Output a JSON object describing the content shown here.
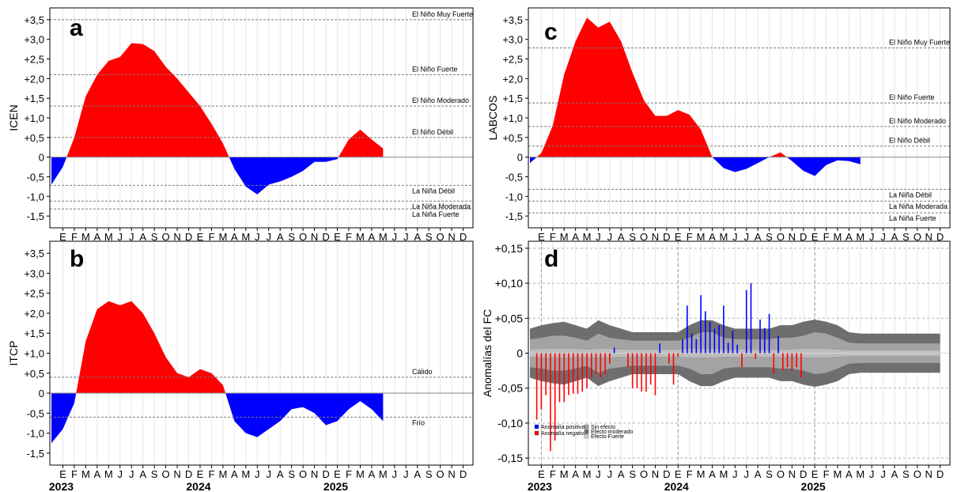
{
  "colors": {
    "positive": "#ff0000",
    "negative": "#0000ff",
    "band_dark": "#6e6e6e",
    "band_mid": "#a3a3a3",
    "band_light": "#d0d0d0",
    "dashed": "#7a7a7a",
    "zero_line": "#8a8a8a"
  },
  "x_axis": {
    "month_labels": [
      "E",
      "F",
      "M",
      "A",
      "M",
      "J",
      "J",
      "A",
      "S",
      "O",
      "N",
      "D",
      "E",
      "F",
      "M",
      "A",
      "M",
      "J",
      "J",
      "A",
      "S",
      "O",
      "N",
      "D",
      "E",
      "F",
      "M",
      "A",
      "M",
      "J",
      "J",
      "A",
      "S",
      "O",
      "N",
      "D"
    ],
    "year_labels": [
      "2023",
      "2024",
      "2025"
    ]
  },
  "chart_data": [
    {
      "type": "area",
      "panel": "a",
      "ylabel": "ICEN",
      "ylim": [
        -1.8,
        3.8
      ],
      "y_ticks": [
        "+3,5",
        "+3,0",
        "+2,5",
        "+2,0",
        "+1,5",
        "+1,0",
        "+0,5",
        "0",
        "-0,5",
        "-1,0",
        "-1,5"
      ],
      "y_tick_values": [
        3.5,
        3.0,
        2.5,
        2.0,
        1.5,
        1.0,
        0.5,
        0,
        -0.5,
        -1.0,
        -1.5
      ],
      "x_start": "2022-12",
      "series": [
        {
          "values": [
            -0.7,
            -0.25,
            0.5,
            1.55,
            2.1,
            2.45,
            2.55,
            2.9,
            2.88,
            2.7,
            2.3,
            2.0,
            1.65,
            1.3,
            0.85,
            0.35,
            -0.3,
            -0.75,
            -0.95,
            -0.7,
            -0.62,
            -0.5,
            -0.35,
            -0.12,
            -0.12,
            -0.05,
            0.45,
            0.7,
            0.45,
            0.22
          ]
        }
      ],
      "thresholds": [
        {
          "label": "El Niño Muy Fuerte",
          "value": 3.5
        },
        {
          "label": "El Niño Fuerte",
          "value": 2.1
        },
        {
          "label": "El Niño Moderado",
          "value": 1.3
        },
        {
          "label": "El Niño Débil",
          "value": 0.5
        },
        {
          "label": "La Niña Débil",
          "value": -0.72
        },
        {
          "label": "La Niña Moderada",
          "value": -1.12
        },
        {
          "label": "La Niña Fuerte",
          "value": -1.32
        }
      ]
    },
    {
      "type": "area",
      "panel": "b",
      "ylabel": "ITCP",
      "ylim": [
        -1.8,
        3.8
      ],
      "y_ticks": [
        "+3,5",
        "+3,0",
        "+2,5",
        "+2,0",
        "+1,5",
        "+1,0",
        "+0,5",
        "0",
        "-0,5",
        "-1,0",
        "-1,5"
      ],
      "y_tick_values": [
        3.5,
        3.0,
        2.5,
        2.0,
        1.5,
        1.0,
        0.5,
        0,
        -0.5,
        -1.0,
        -1.5
      ],
      "x_start": "2022-12",
      "series": [
        {
          "values": [
            -1.25,
            -0.9,
            -0.25,
            1.3,
            2.1,
            2.3,
            2.2,
            2.3,
            2.0,
            1.5,
            0.9,
            0.5,
            0.4,
            0.6,
            0.5,
            0.2,
            -0.7,
            -1.0,
            -1.1,
            -0.9,
            -0.7,
            -0.4,
            -0.35,
            -0.5,
            -0.8,
            -0.7,
            -0.4,
            -0.2,
            -0.4,
            -0.7
          ]
        }
      ],
      "thresholds": [
        {
          "label": "Cálido",
          "value": 0.4
        },
        {
          "label": "Frío",
          "value": -0.6
        }
      ]
    },
    {
      "type": "area",
      "panel": "c",
      "ylabel": "LABCOS",
      "ylim": [
        -1.8,
        3.8
      ],
      "y_ticks": [
        "+3,5",
        "+3,0",
        "+2,5",
        "+2,0",
        "+1,5",
        "+1,0",
        "+0,5",
        "0",
        "-0,5",
        "-1,0",
        "-1,5"
      ],
      "y_tick_values": [
        3.5,
        3.0,
        2.5,
        2.0,
        1.5,
        1.0,
        0.5,
        0,
        -0.5,
        -1.0,
        -1.5
      ],
      "x_start": "2022-12",
      "series": [
        {
          "values": [
            -0.15,
            0.1,
            0.8,
            2.1,
            2.95,
            3.55,
            3.3,
            3.45,
            2.95,
            2.15,
            1.45,
            1.05,
            1.05,
            1.2,
            1.08,
            0.7,
            0.0,
            -0.28,
            -0.38,
            -0.3,
            -0.15,
            0.0,
            0.12,
            -0.1,
            -0.35,
            -0.48,
            -0.2,
            -0.08,
            -0.1,
            -0.18
          ]
        }
      ],
      "thresholds": [
        {
          "label": "El Niño Muy Fuerte",
          "value": 2.78
        },
        {
          "label": "El Niño Fuerte",
          "value": 1.38
        },
        {
          "label": "El Niño Moderado",
          "value": 0.78
        },
        {
          "label": "El Niño Débil",
          "value": 0.28
        },
        {
          "label": "La Niña Débil",
          "value": -0.82
        },
        {
          "label": "La Niña Moderada",
          "value": -1.12
        },
        {
          "label": "La Niña Fuerte",
          "value": -1.42
        }
      ]
    },
    {
      "type": "bar",
      "panel": "d",
      "ylabel": "Anomalías del FC",
      "ylim": [
        -0.16,
        0.16
      ],
      "y_ticks": [
        "+0,15",
        "+0,10",
        "+0,05",
        "0",
        "-0,05",
        "-0,10",
        "-0,15"
      ],
      "y_tick_values": [
        0.15,
        0.1,
        0.05,
        0,
        -0.05,
        -0.1,
        -0.15
      ],
      "x_start": "2022-12",
      "band_monthly": {
        "strong": [
          0.035,
          0.04,
          0.043,
          0.045,
          0.04,
          0.035,
          0.047,
          0.04,
          0.035,
          0.03,
          0.03,
          0.03,
          0.03,
          0.03,
          0.04,
          0.047,
          0.047,
          0.04,
          0.035,
          0.035,
          0.035,
          0.035,
          0.04,
          0.04,
          0.045,
          0.048,
          0.045,
          0.04,
          0.03,
          0.028,
          0.028,
          0.028,
          0.028,
          0.028,
          0.028,
          0.028,
          0.028
        ],
        "moderate": [
          0.02,
          0.022,
          0.025,
          0.025,
          0.022,
          0.018,
          0.028,
          0.022,
          0.02,
          0.018,
          0.018,
          0.018,
          0.018,
          0.018,
          0.022,
          0.03,
          0.03,
          0.022,
          0.02,
          0.02,
          0.02,
          0.02,
          0.022,
          0.022,
          0.025,
          0.03,
          0.028,
          0.022,
          0.015,
          0.014,
          0.014,
          0.014,
          0.014,
          0.014,
          0.014,
          0.014,
          0.014
        ],
        "none": [
          0.005,
          0.006,
          0.006,
          0.006,
          0.006,
          0.005,
          0.006,
          0.006,
          0.005,
          0.005,
          0.005,
          0.005,
          0.005,
          0.005,
          0.006,
          0.006,
          0.006,
          0.005,
          0.005,
          0.005,
          0.005,
          0.005,
          0.005,
          0.005,
          0.006,
          0.006,
          0.006,
          0.005,
          0.004,
          0.004,
          0.004,
          0.004,
          0.004,
          0.004,
          0.004,
          0.004,
          0.004
        ]
      },
      "bars": [
        {
          "m": 0.6,
          "v": -0.095
        },
        {
          "m": 1.0,
          "v": -0.08
        },
        {
          "m": 1.4,
          "v": -0.06
        },
        {
          "m": 1.8,
          "v": -0.14
        },
        {
          "m": 2.2,
          "v": -0.125
        },
        {
          "m": 2.6,
          "v": -0.07
        },
        {
          "m": 3.0,
          "v": -0.07
        },
        {
          "m": 3.4,
          "v": -0.06
        },
        {
          "m": 3.8,
          "v": -0.058
        },
        {
          "m": 4.2,
          "v": -0.058
        },
        {
          "m": 4.6,
          "v": -0.055
        },
        {
          "m": 5.0,
          "v": -0.05
        },
        {
          "m": 5.4,
          "v": -0.035
        },
        {
          "m": 5.8,
          "v": -0.03
        },
        {
          "m": 6.2,
          "v": -0.035
        },
        {
          "m": 6.6,
          "v": -0.03
        },
        {
          "m": 7.0,
          "v": -0.015
        },
        {
          "m": 7.4,
          "v": 0.008
        },
        {
          "m": 8.6,
          "v": -0.02
        },
        {
          "m": 9.0,
          "v": -0.05
        },
        {
          "m": 9.4,
          "v": -0.05
        },
        {
          "m": 9.8,
          "v": -0.055
        },
        {
          "m": 10.2,
          "v": -0.055
        },
        {
          "m": 10.6,
          "v": -0.045
        },
        {
          "m": 11.0,
          "v": -0.06
        },
        {
          "m": 11.4,
          "v": 0.014
        },
        {
          "m": 12.2,
          "v": -0.015
        },
        {
          "m": 12.6,
          "v": -0.045
        },
        {
          "m": 13.0,
          "v": -0.005
        },
        {
          "m": 13.4,
          "v": 0.02
        },
        {
          "m": 13.8,
          "v": 0.068
        },
        {
          "m": 14.2,
          "v": 0.028
        },
        {
          "m": 14.6,
          "v": 0.02
        },
        {
          "m": 15.0,
          "v": 0.083
        },
        {
          "m": 15.4,
          "v": 0.06
        },
        {
          "m": 15.8,
          "v": 0.045
        },
        {
          "m": 16.2,
          "v": 0.035
        },
        {
          "m": 16.6,
          "v": 0.04
        },
        {
          "m": 17.0,
          "v": 0.068
        },
        {
          "m": 17.4,
          "v": 0.015
        },
        {
          "m": 17.8,
          "v": 0.032
        },
        {
          "m": 18.2,
          "v": 0.012
        },
        {
          "m": 18.6,
          "v": -0.02
        },
        {
          "m": 19.0,
          "v": 0.09
        },
        {
          "m": 19.4,
          "v": 0.1
        },
        {
          "m": 19.8,
          "v": -0.008
        },
        {
          "m": 20.2,
          "v": 0.048
        },
        {
          "m": 20.6,
          "v": 0.036
        },
        {
          "m": 21.0,
          "v": 0.056
        },
        {
          "m": 21.4,
          "v": -0.03
        },
        {
          "m": 21.8,
          "v": 0.025
        },
        {
          "m": 22.2,
          "v": -0.025
        },
        {
          "m": 22.6,
          "v": -0.02
        },
        {
          "m": 23.0,
          "v": -0.025
        },
        {
          "m": 23.4,
          "v": -0.02
        },
        {
          "m": 23.8,
          "v": -0.035
        }
      ],
      "legend": [
        {
          "label": "Anomalía positiva",
          "color": "#0000ff"
        },
        {
          "label": "Anomalía negativa",
          "color": "#ff0000"
        },
        {
          "label": "Sin efecto",
          "color": "#a3a3a3"
        },
        {
          "label": "Efecto moderado",
          "color": "#6e6e6e"
        },
        {
          "label": "Efecto Fuerte",
          "color": "#d0d0d0"
        }
      ]
    }
  ]
}
